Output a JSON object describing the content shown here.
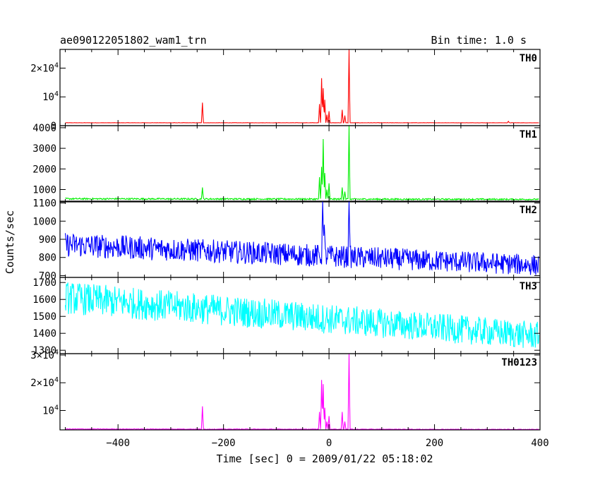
{
  "header": {
    "title": "ae090122051802_wam1_trn",
    "bin_time": "Bin time: 1.0 s"
  },
  "chart_data": {
    "type": "line",
    "xlabel": "Time [sec] 0 = 2009/01/22 05:18:02",
    "ylabel": "Counts/sec",
    "xlim": [
      -510,
      400
    ],
    "xticks": [
      -400,
      -200,
      0,
      200,
      400
    ],
    "grid": false,
    "panels": [
      {
        "name": "TH0",
        "color": "#ff0000",
        "ylim": [
          0,
          26500
        ],
        "yticks": [
          {
            "v": 0,
            "t": "0"
          },
          {
            "v": 10000,
            "t": "10",
            "e": "4"
          },
          {
            "v": 20000,
            "t": "2×10",
            "e": "4"
          }
        ],
        "baseline": 1000,
        "noise": 0.03,
        "trend": 0,
        "peaks": [
          [
            -240,
            8000
          ],
          [
            -18,
            7500
          ],
          [
            -14,
            16500
          ],
          [
            -11,
            13000
          ],
          [
            -8,
            9000
          ],
          [
            -4,
            3800
          ],
          [
            0,
            5000
          ],
          [
            25,
            5500
          ],
          [
            30,
            3500
          ],
          [
            38,
            26500
          ],
          [
            340,
            1500
          ]
        ]
      },
      {
        "name": "TH1",
        "color": "#00ee00",
        "ylim": [
          400,
          4100
        ],
        "yticks": [
          {
            "v": 1000,
            "t": "1000"
          },
          {
            "v": 2000,
            "t": "2000"
          },
          {
            "v": 3000,
            "t": "3000"
          },
          {
            "v": 4000,
            "t": "4000"
          }
        ],
        "baseline": 550,
        "noise": 0.04,
        "trend": -0.05,
        "peaks": [
          [
            -240,
            1100
          ],
          [
            -18,
            1600
          ],
          [
            -14,
            2100
          ],
          [
            -11,
            3450
          ],
          [
            -8,
            1800
          ],
          [
            -4,
            1000
          ],
          [
            0,
            1300
          ],
          [
            25,
            1100
          ],
          [
            30,
            900
          ],
          [
            38,
            4100
          ]
        ]
      },
      {
        "name": "TH2",
        "color": "#0000ff",
        "ylim": [
          690,
          1110
        ],
        "yticks": [
          {
            "v": 700,
            "t": "700"
          },
          {
            "v": 800,
            "t": "800"
          },
          {
            "v": 900,
            "t": "900"
          },
          {
            "v": 1000,
            "t": "1000"
          },
          {
            "v": 1100,
            "t": "1100"
          }
        ],
        "baseline": 870,
        "noise": 0.045,
        "trend": -0.13,
        "peaks": [
          [
            -12,
            1110
          ],
          [
            -9,
            980
          ],
          [
            38,
            1110
          ]
        ]
      },
      {
        "name": "TH3",
        "color": "#00ffff",
        "ylim": [
          1280,
          1730
        ],
        "yticks": [
          {
            "v": 1300,
            "t": "1300"
          },
          {
            "v": 1400,
            "t": "1400"
          },
          {
            "v": 1500,
            "t": "1500"
          },
          {
            "v": 1600,
            "t": "1600"
          },
          {
            "v": 1700,
            "t": "1700"
          }
        ],
        "baseline": 1610,
        "noise": 0.035,
        "trend": -0.14,
        "peaks": []
      },
      {
        "name": "TH0123",
        "color": "#ff00ff",
        "ylim": [
          3000,
          30500
        ],
        "yticks": [
          {
            "v": 10000,
            "t": "10",
            "e": "4"
          },
          {
            "v": 20000,
            "t": "2×10",
            "e": "4"
          },
          {
            "v": 30000,
            "t": "3×10",
            "e": "4"
          }
        ],
        "baseline": 3300,
        "noise": 0.02,
        "trend": -0.04,
        "peaks": [
          [
            -240,
            11500
          ],
          [
            -18,
            9500
          ],
          [
            -14,
            21000
          ],
          [
            -11,
            19500
          ],
          [
            -8,
            11000
          ],
          [
            -4,
            6000
          ],
          [
            0,
            8000
          ],
          [
            25,
            9500
          ],
          [
            30,
            6000
          ],
          [
            38,
            30500
          ]
        ]
      }
    ]
  }
}
